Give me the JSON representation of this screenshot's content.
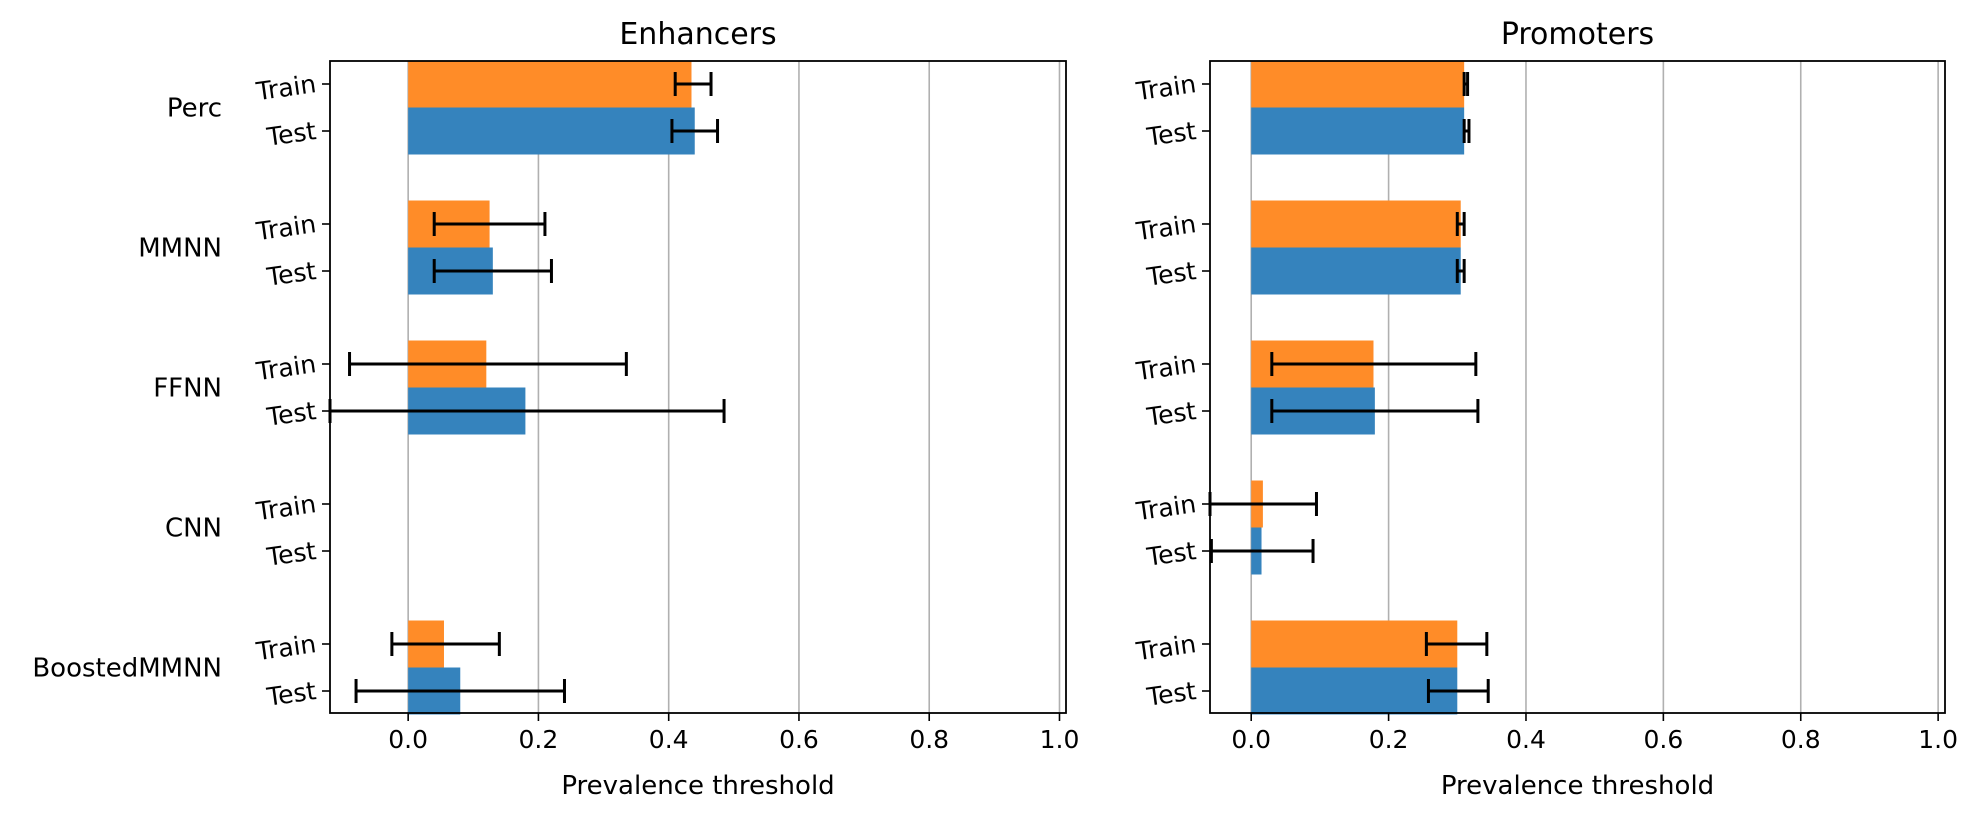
{
  "colors": {
    "train": "#ff8c28",
    "test": "#3583bd",
    "grid": "#b0b0b0",
    "errorbar": "#000000"
  },
  "chart_data": [
    {
      "type": "bar",
      "orientation": "horizontal",
      "title": "Enhancers",
      "xlabel": "Prevalence threshold",
      "xlim": [
        -0.12,
        1.01
      ],
      "xticks": [
        "0.0",
        "0.2",
        "0.4",
        "0.6",
        "0.8",
        "1.0"
      ],
      "xtick_values": [
        0.0,
        0.2,
        0.4,
        0.6,
        0.8,
        1.0
      ],
      "grid": "vertical",
      "groups": [
        {
          "name": "Perc",
          "bars": [
            {
              "label": "Train",
              "value": 0.435,
              "err_low": 0.41,
              "err_high": 0.465
            },
            {
              "label": "Test",
              "value": 0.44,
              "err_low": 0.405,
              "err_high": 0.475
            }
          ]
        },
        {
          "name": "MMNN",
          "bars": [
            {
              "label": "Train",
              "value": 0.125,
              "err_low": 0.04,
              "err_high": 0.21
            },
            {
              "label": "Test",
              "value": 0.13,
              "err_low": 0.04,
              "err_high": 0.22
            }
          ]
        },
        {
          "name": "FFNN",
          "bars": [
            {
              "label": "Train",
              "value": 0.12,
              "err_low": -0.09,
              "err_high": 0.335
            },
            {
              "label": "Test",
              "value": 0.18,
              "err_low": -0.12,
              "err_high": 0.485
            }
          ]
        },
        {
          "name": "CNN",
          "bars": [
            {
              "label": "Train",
              "value": null
            },
            {
              "label": "Test",
              "value": null
            }
          ]
        },
        {
          "name": "BoostedMMNN",
          "bars": [
            {
              "label": "Train",
              "value": 0.055,
              "err_low": -0.025,
              "err_high": 0.14
            },
            {
              "label": "Test",
              "value": 0.08,
              "err_low": -0.08,
              "err_high": 0.24
            }
          ]
        }
      ]
    },
    {
      "type": "bar",
      "orientation": "horizontal",
      "title": "Promoters",
      "xlabel": "Prevalence threshold",
      "xlim": [
        -0.06,
        1.01
      ],
      "xticks": [
        "0.0",
        "0.2",
        "0.4",
        "0.6",
        "0.8",
        "1.0"
      ],
      "xtick_values": [
        0.0,
        0.2,
        0.4,
        0.6,
        0.8,
        1.0
      ],
      "grid": "vertical",
      "groups": [
        {
          "name": "Perc",
          "bars": [
            {
              "label": "Train",
              "value": 0.31,
              "err_low": 0.31,
              "err_high": 0.315
            },
            {
              "label": "Test",
              "value": 0.31,
              "err_low": 0.31,
              "err_high": 0.317
            }
          ]
        },
        {
          "name": "MMNN",
          "bars": [
            {
              "label": "Train",
              "value": 0.305,
              "err_low": 0.3,
              "err_high": 0.31
            },
            {
              "label": "Test",
              "value": 0.305,
              "err_low": 0.3,
              "err_high": 0.31
            }
          ]
        },
        {
          "name": "FFNN",
          "bars": [
            {
              "label": "Train",
              "value": 0.178,
              "err_low": 0.03,
              "err_high": 0.327
            },
            {
              "label": "Test",
              "value": 0.18,
              "err_low": 0.03,
              "err_high": 0.33
            }
          ]
        },
        {
          "name": "CNN",
          "bars": [
            {
              "label": "Train",
              "value": 0.017,
              "err_low": -0.06,
              "err_high": 0.095
            },
            {
              "label": "Test",
              "value": 0.015,
              "err_low": -0.058,
              "err_high": 0.09
            }
          ]
        },
        {
          "name": "BoostedMMNN",
          "bars": [
            {
              "label": "Train",
              "value": 0.3,
              "err_low": 0.255,
              "err_high": 0.343
            },
            {
              "label": "Test",
              "value": 0.3,
              "err_low": 0.258,
              "err_high": 0.345
            }
          ]
        }
      ]
    }
  ]
}
